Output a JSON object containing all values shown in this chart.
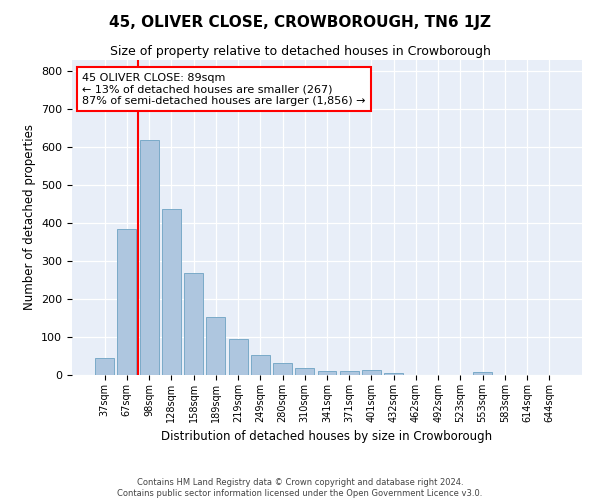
{
  "title": "45, OLIVER CLOSE, CROWBOROUGH, TN6 1JZ",
  "subtitle": "Size of property relative to detached houses in Crowborough",
  "xlabel": "Distribution of detached houses by size in Crowborough",
  "ylabel": "Number of detached properties",
  "categories": [
    "37sqm",
    "67sqm",
    "98sqm",
    "128sqm",
    "158sqm",
    "189sqm",
    "219sqm",
    "249sqm",
    "280sqm",
    "310sqm",
    "341sqm",
    "371sqm",
    "401sqm",
    "432sqm",
    "462sqm",
    "492sqm",
    "523sqm",
    "553sqm",
    "583sqm",
    "614sqm",
    "644sqm"
  ],
  "values": [
    46,
    385,
    620,
    437,
    268,
    153,
    96,
    52,
    32,
    18,
    11,
    11,
    13,
    5,
    0,
    0,
    0,
    9,
    0,
    0,
    0
  ],
  "bar_color": "#aec6df",
  "bar_edge_color": "#7aaac8",
  "vline_color": "red",
  "annotation_text": "45 OLIVER CLOSE: 89sqm\n← 13% of detached houses are smaller (267)\n87% of semi-detached houses are larger (1,856) →",
  "annotation_box_color": "white",
  "annotation_box_edge_color": "red",
  "ylim": [
    0,
    830
  ],
  "yticks": [
    0,
    100,
    200,
    300,
    400,
    500,
    600,
    700,
    800
  ],
  "background_color": "#e8eef8",
  "footer_line1": "Contains HM Land Registry data © Crown copyright and database right 2024.",
  "footer_line2": "Contains public sector information licensed under the Open Government Licence v3.0."
}
